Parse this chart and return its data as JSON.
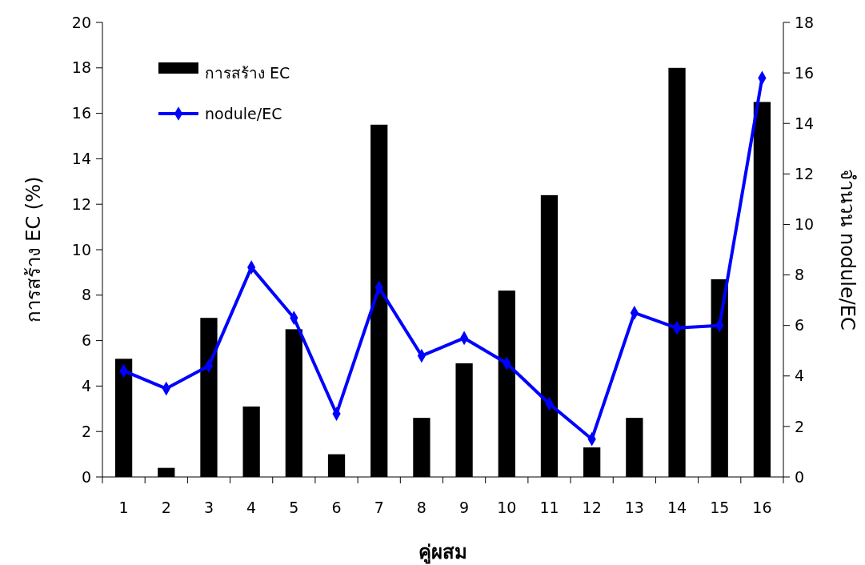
{
  "chart_data": {
    "type": "bar",
    "xlabel": "คู่ผสม",
    "ylabel": "การสร้าง EC (%)",
    "y2label": "จำนวน nodule/EC",
    "categories": [
      "1",
      "2",
      "3",
      "4",
      "5",
      "6",
      "7",
      "8",
      "9",
      "10",
      "11",
      "12",
      "13",
      "14",
      "15",
      "16"
    ],
    "series": [
      {
        "name": "การสร้าง EC",
        "color": "#000000",
        "values": [
          5.2,
          0.4,
          7.0,
          3.1,
          6.5,
          1.0,
          15.5,
          2.6,
          5.0,
          8.2,
          12.4,
          1.3,
          2.6,
          18.0,
          8.7,
          16.5
        ]
      },
      {
        "name": "nodule/EC",
        "type": "line",
        "axis": "y2",
        "color": "#0000ff",
        "marker": "diamond",
        "values": [
          4.2,
          3.5,
          4.4,
          8.3,
          6.3,
          2.5,
          7.5,
          4.8,
          5.5,
          4.5,
          2.9,
          1.5,
          6.5,
          5.9,
          6.0,
          15.8
        ]
      }
    ],
    "ylim": [
      0,
      20
    ],
    "yticks": [
      0,
      2,
      4,
      6,
      8,
      10,
      12,
      14,
      16,
      18,
      20
    ],
    "y2lim": [
      0,
      18
    ],
    "y2ticks": [
      0,
      2,
      4,
      6,
      8,
      10,
      12,
      14,
      16,
      18
    ],
    "grid": false,
    "legend": "top left"
  }
}
